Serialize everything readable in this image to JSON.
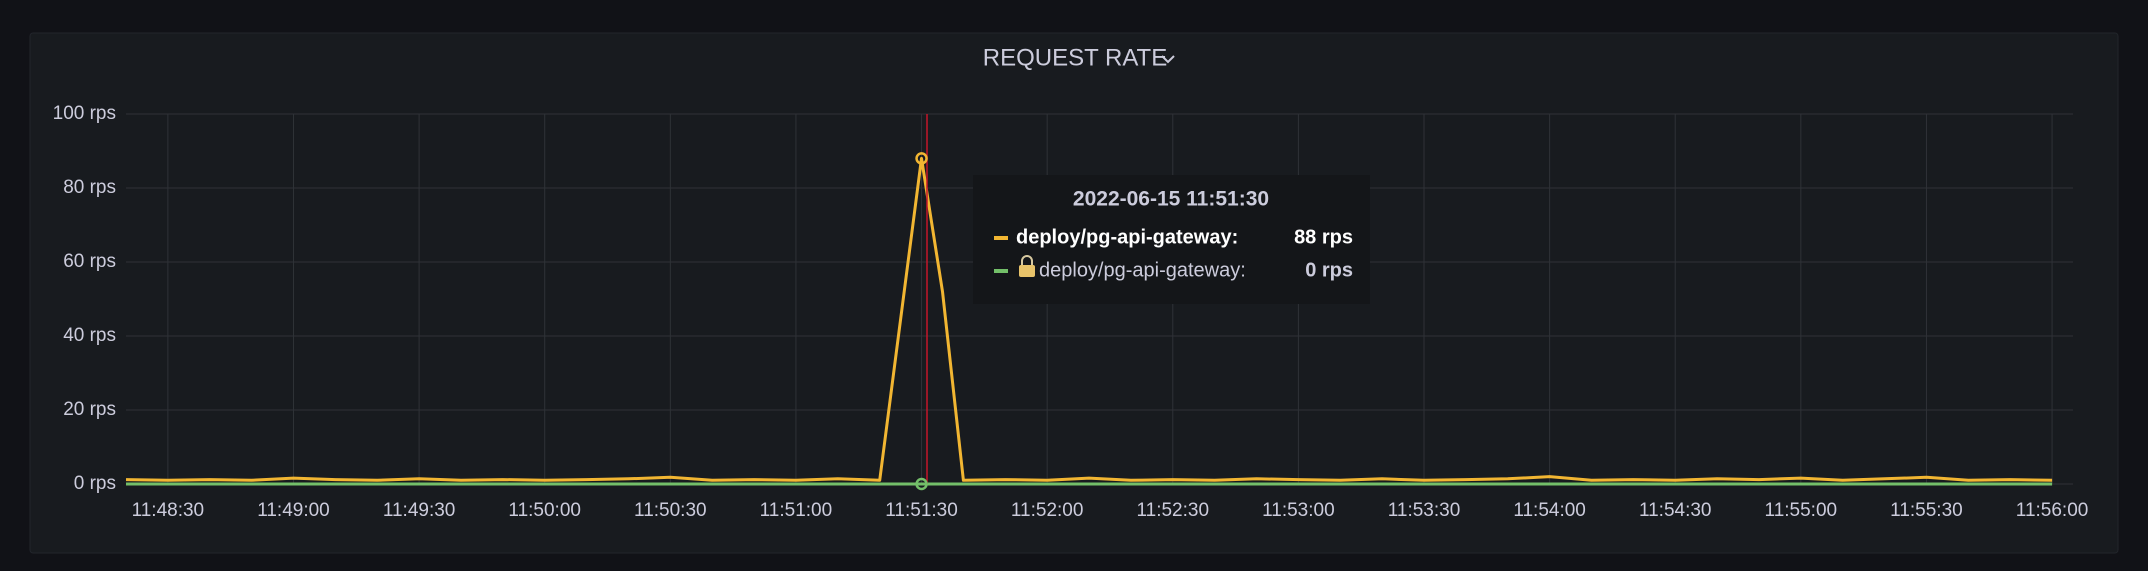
{
  "chart_data": {
    "type": "line",
    "title": "REQUEST RATE",
    "x": [
      "11:48:20",
      "11:48:30",
      "11:48:40",
      "11:48:50",
      "11:49:00",
      "11:49:10",
      "11:49:20",
      "11:49:30",
      "11:49:40",
      "11:49:50",
      "11:50:00",
      "11:50:10",
      "11:50:20",
      "11:50:30",
      "11:50:40",
      "11:50:50",
      "11:51:00",
      "11:51:10",
      "11:51:20",
      "11:51:30",
      "11:51:35",
      "11:51:40",
      "11:51:50",
      "11:52:00",
      "11:52:10",
      "11:52:20",
      "11:52:30",
      "11:52:40",
      "11:52:50",
      "11:53:00",
      "11:53:10",
      "11:53:20",
      "11:53:30",
      "11:53:40",
      "11:53:50",
      "11:54:00",
      "11:54:10",
      "11:54:20",
      "11:54:30",
      "11:54:40",
      "11:54:50",
      "11:55:00",
      "11:55:10",
      "11:55:20",
      "11:55:30",
      "11:55:40",
      "11:55:50",
      "11:56:00"
    ],
    "series": [
      {
        "name": "deploy/pg-api-gateway",
        "color": "#f2b632",
        "values": [
          1.2,
          1.0,
          1.2,
          1.0,
          1.6,
          1.2,
          1.0,
          1.4,
          1.0,
          1.2,
          1.0,
          1.2,
          1.4,
          1.8,
          1.0,
          1.2,
          1.0,
          1.4,
          1.0,
          88,
          52,
          1.0,
          1.2,
          1.0,
          1.6,
          1.0,
          1.2,
          1.0,
          1.4,
          1.2,
          1.0,
          1.4,
          1.0,
          1.2,
          1.4,
          2.0,
          1.0,
          1.2,
          1.0,
          1.4,
          1.2,
          1.6,
          1.0,
          1.4,
          1.8,
          1.0,
          1.2,
          1.0
        ]
      },
      {
        "name": "deploy/pg-api-gateway",
        "color": "#73bf69",
        "values": [
          0,
          0,
          0,
          0,
          0,
          0,
          0,
          0,
          0,
          0,
          0,
          0,
          0,
          0,
          0,
          0,
          0,
          0,
          0,
          0,
          0,
          0,
          0,
          0,
          0,
          0,
          0,
          0,
          0,
          0,
          0,
          0,
          0,
          0,
          0,
          0,
          0,
          0,
          0,
          0,
          0,
          0,
          0,
          0,
          0,
          0,
          0,
          0
        ]
      }
    ],
    "xlim": [
      "11:48:20",
      "11:56:05"
    ],
    "xticks": [
      "11:48:30",
      "11:49:00",
      "11:49:30",
      "11:50:00",
      "11:50:30",
      "11:51:00",
      "11:51:30",
      "11:52:00",
      "11:52:30",
      "11:53:00",
      "11:53:30",
      "11:54:00",
      "11:54:30",
      "11:55:00",
      "11:55:30",
      "11:56:00"
    ],
    "ylim": [
      0,
      100
    ],
    "yticks": [
      {
        "value": 0,
        "label": "0 rps"
      },
      {
        "value": 20,
        "label": "20 rps"
      },
      {
        "value": 40,
        "label": "40 rps"
      },
      {
        "value": 60,
        "label": "60 rps"
      },
      {
        "value": 80,
        "label": "80 rps"
      },
      {
        "value": 100,
        "label": "100 rps"
      }
    ],
    "grid": true,
    "tooltip": {
      "title": "2022-06-15 11:51:30",
      "rows": [
        {
          "label": "deploy/pg-api-gateway:",
          "value_label": "88 rps"
        },
        {
          "label": "deploy/pg-api-gateway:",
          "value_label": "0 rps"
        }
      ]
    }
  }
}
